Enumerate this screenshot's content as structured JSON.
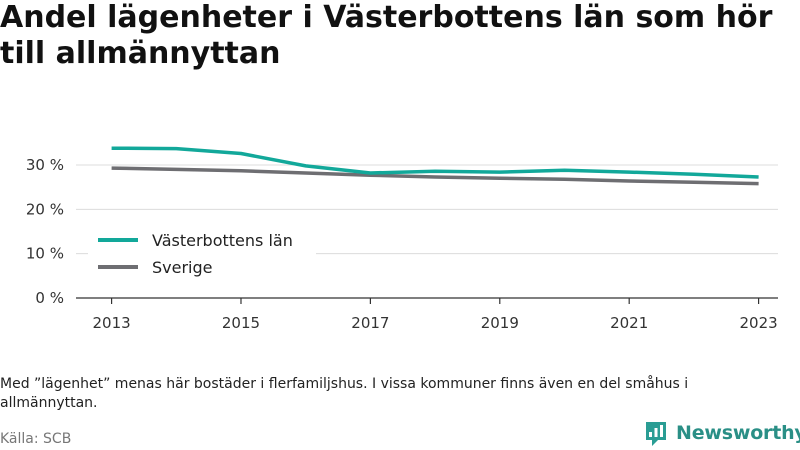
{
  "title": "Andel lägenheter i Västerbottens län som hör till allmännyttan",
  "note": "Med ”lägenhet” menas här bostäder i flerfamiljshus. I vissa kommuner finns även en del småhus i allmännyttan.",
  "source": "Källa: SCB",
  "brand": {
    "name": "Newsworthy",
    "color": "#2a9d94"
  },
  "chart_data": {
    "type": "line",
    "x": [
      2013,
      2014,
      2015,
      2016,
      2017,
      2018,
      2019,
      2020,
      2021,
      2022,
      2023
    ],
    "xticks": [
      2013,
      2015,
      2017,
      2019,
      2021,
      2023
    ],
    "xlim": [
      2012.45,
      2023.3
    ],
    "ylim": [
      0,
      30
    ],
    "yticks": [
      0,
      10,
      20,
      30
    ],
    "ytick_labels": [
      "0 %",
      "10 %",
      "20 %",
      "30 %"
    ],
    "grid": true,
    "legend_position": "left",
    "series": [
      {
        "name": "Västerbottens län",
        "color": "#12a89a",
        "values": [
          33.8,
          33.7,
          32.6,
          29.8,
          28.2,
          28.6,
          28.4,
          28.8,
          28.4,
          27.9,
          27.3
        ]
      },
      {
        "name": "Sverige",
        "color": "#6e6e72",
        "values": [
          29.3,
          29.0,
          28.7,
          28.2,
          27.7,
          27.3,
          27.0,
          26.8,
          26.4,
          26.1,
          25.8
        ]
      }
    ]
  }
}
